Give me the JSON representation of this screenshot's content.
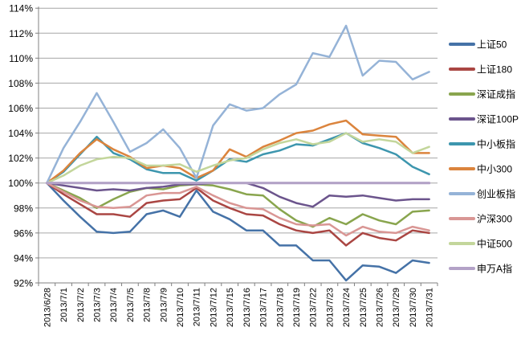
{
  "chart": {
    "background": "#ffffff",
    "grid_color": "#a6a6a6",
    "axis_color": "#808080",
    "text_color": "#000000"
  },
  "chart_data": {
    "type": "line",
    "title": "",
    "xlabel": "",
    "ylabel": "",
    "ylim": [
      92,
      114
    ],
    "y_tick_step": 2,
    "y_tick_suffix": "%",
    "grid": true,
    "legend_position": "right",
    "x_labels": [
      "2013/6/28",
      "2013/7/1",
      "2013/7/2",
      "2013/7/3",
      "2013/7/4",
      "2013/7/5",
      "2013/7/8",
      "2013/7/9",
      "2013/7/10",
      "2013/7/11",
      "2013/7/12",
      "2013/7/15",
      "2013/7/16",
      "2013/7/17",
      "2013/7/18",
      "2013/7/19",
      "2013/7/22",
      "2013/7/23",
      "2013/7/24",
      "2013/7/25",
      "2013/7/26",
      "2013/7/29",
      "2013/7/30",
      "2013/7/31"
    ],
    "series": [
      {
        "name": "上证50",
        "color": "#4572A7",
        "width": 2.5,
        "values": [
          100,
          98.6,
          97.3,
          96.1,
          96.0,
          96.1,
          97.5,
          97.8,
          97.3,
          99.4,
          97.7,
          97.1,
          96.2,
          96.2,
          95.0,
          95.0,
          93.8,
          93.8,
          92.2,
          93.4,
          93.3,
          92.8,
          93.8,
          93.6
        ]
      },
      {
        "name": "上证180",
        "color": "#AA4643",
        "width": 2.5,
        "values": [
          100,
          99.1,
          98.3,
          97.5,
          97.5,
          97.3,
          98.4,
          98.6,
          98.7,
          99.6,
          98.6,
          98.0,
          97.5,
          97.4,
          96.7,
          96.2,
          96.0,
          96.2,
          95.0,
          96.0,
          95.6,
          95.4,
          96.2,
          96.0
        ]
      },
      {
        "name": "深证成指",
        "color": "#89A54E",
        "width": 2.5,
        "values": [
          100,
          99.4,
          98.8,
          98.0,
          98.7,
          99.3,
          99.6,
          99.5,
          99.8,
          99.9,
          99.8,
          99.5,
          99.1,
          99.0,
          97.9,
          97.0,
          96.5,
          97.2,
          96.7,
          97.5,
          97.0,
          96.7,
          97.7,
          97.8
        ]
      },
      {
        "name": "深证100P",
        "color": "#6B548C",
        "width": 2.5,
        "values": [
          100,
          99.8,
          99.6,
          99.4,
          99.5,
          99.4,
          99.6,
          99.7,
          99.9,
          99.9,
          100.0,
          100.0,
          100.0,
          99.6,
          98.9,
          98.4,
          98.1,
          99.0,
          98.9,
          99.0,
          98.8,
          98.6,
          98.7,
          98.7
        ]
      },
      {
        "name": "中小板指",
        "color": "#3D96AE",
        "width": 2.5,
        "values": [
          100,
          100.9,
          102.3,
          103.7,
          102.4,
          101.9,
          101.1,
          100.8,
          100.8,
          100.2,
          101.0,
          101.9,
          101.7,
          102.3,
          102.6,
          103.1,
          103.0,
          103.5,
          104.0,
          103.2,
          102.8,
          102.3,
          101.3,
          100.7
        ]
      },
      {
        "name": "中小300",
        "color": "#DB843D",
        "width": 2.5,
        "values": [
          100,
          101.0,
          102.4,
          103.5,
          102.7,
          102.1,
          101.2,
          101.4,
          101.2,
          100.4,
          101.0,
          102.7,
          102.1,
          102.9,
          103.4,
          104.0,
          104.2,
          104.7,
          105.0,
          103.9,
          103.8,
          103.7,
          102.4,
          102.4
        ]
      },
      {
        "name": "创业板指",
        "color": "#95B3D7",
        "width": 2.5,
        "values": [
          100,
          102.8,
          104.9,
          107.2,
          104.9,
          102.5,
          103.2,
          104.3,
          102.8,
          100.4,
          104.6,
          106.3,
          105.8,
          106.0,
          107.1,
          107.9,
          110.4,
          110.1,
          112.6,
          108.6,
          109.8,
          109.7,
          108.3,
          108.9
        ]
      },
      {
        "name": "沪深300",
        "color": "#D99694",
        "width": 2.5,
        "values": [
          100,
          99.3,
          98.6,
          98.1,
          98.0,
          98.1,
          99.0,
          99.2,
          99.2,
          99.7,
          99.0,
          98.4,
          98.0,
          97.9,
          97.2,
          96.7,
          96.6,
          96.7,
          95.8,
          96.5,
          96.1,
          96.0,
          96.5,
          96.2
        ]
      },
      {
        "name": "中证500",
        "color": "#C3D69B",
        "width": 2.5,
        "values": [
          100,
          100.6,
          101.4,
          101.9,
          102.1,
          102.0,
          101.4,
          101.4,
          101.5,
          100.9,
          101.4,
          101.8,
          102.0,
          102.7,
          103.2,
          103.5,
          103.1,
          103.3,
          104.0,
          103.3,
          103.5,
          103.3,
          102.4,
          102.9
        ]
      },
      {
        "name": "申万A指",
        "color": "#B3A2C7",
        "width": 3.2,
        "values": [
          100,
          100,
          100,
          100,
          100,
          100,
          100,
          100,
          100,
          100,
          100,
          100,
          100,
          100,
          100,
          100,
          100,
          100,
          100,
          100,
          100,
          100,
          100,
          100
        ]
      }
    ]
  }
}
